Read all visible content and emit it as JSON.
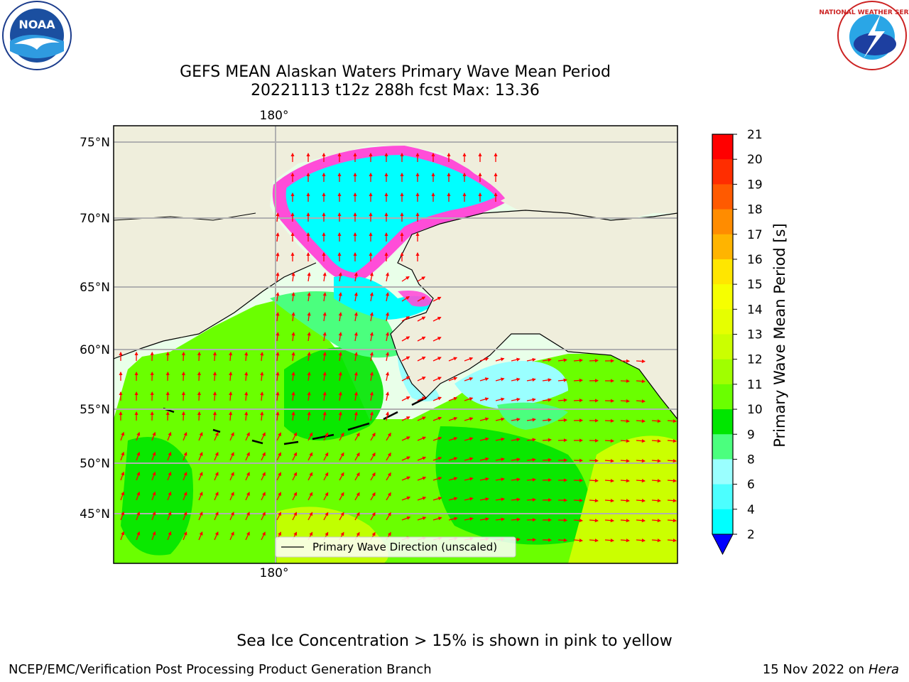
{
  "header": {
    "title_line1": "GEFS MEAN Alaskan Waters Primary Wave Mean Period",
    "title_line2": "20221113 t12z 288h fcst   Max: 13.36"
  },
  "logos": {
    "left": {
      "name": "noaa-logo",
      "text": "NOAA"
    },
    "right": {
      "name": "nws-logo",
      "text": "NATIONAL WEATHER SERVICE"
    }
  },
  "map": {
    "lat_labels": [
      "75°N",
      "70°N",
      "65°N",
      "60°N",
      "55°N",
      "50°N",
      "45°N"
    ],
    "lon_label_top": "180°",
    "lon_label_bottom": "180°",
    "legend_label": "Primary Wave Direction (unscaled)",
    "arrow_color": "#ff0000",
    "land_color": "#efeedc"
  },
  "colorbar": {
    "label": "Primary Wave Mean Period [s]",
    "ticks": [
      "21",
      "20",
      "19",
      "18",
      "17",
      "16",
      "15",
      "14",
      "13",
      "12",
      "11",
      "10",
      "9",
      "8",
      "6",
      "4",
      "2"
    ],
    "colors": [
      "#ff0000",
      "#ff2d00",
      "#ff5a00",
      "#ff8c00",
      "#ffb400",
      "#ffe600",
      "#f6ff00",
      "#e6ff00",
      "#cbff00",
      "#a0ff00",
      "#6aff00",
      "#00e600",
      "#4bff7e",
      "#9affff",
      "#4cffff",
      "#00ffff",
      "#0090ff",
      "#0060ff"
    ],
    "extend_color": "#0000ff"
  },
  "footer": {
    "ice_note": "Sea Ice Concentration > 15% is shown in pink to yellow",
    "left": "NCEP/EMC/Verification Post Processing Product Generation Branch",
    "right_date": "15 Nov 2022 on",
    "right_host": "Hera"
  }
}
